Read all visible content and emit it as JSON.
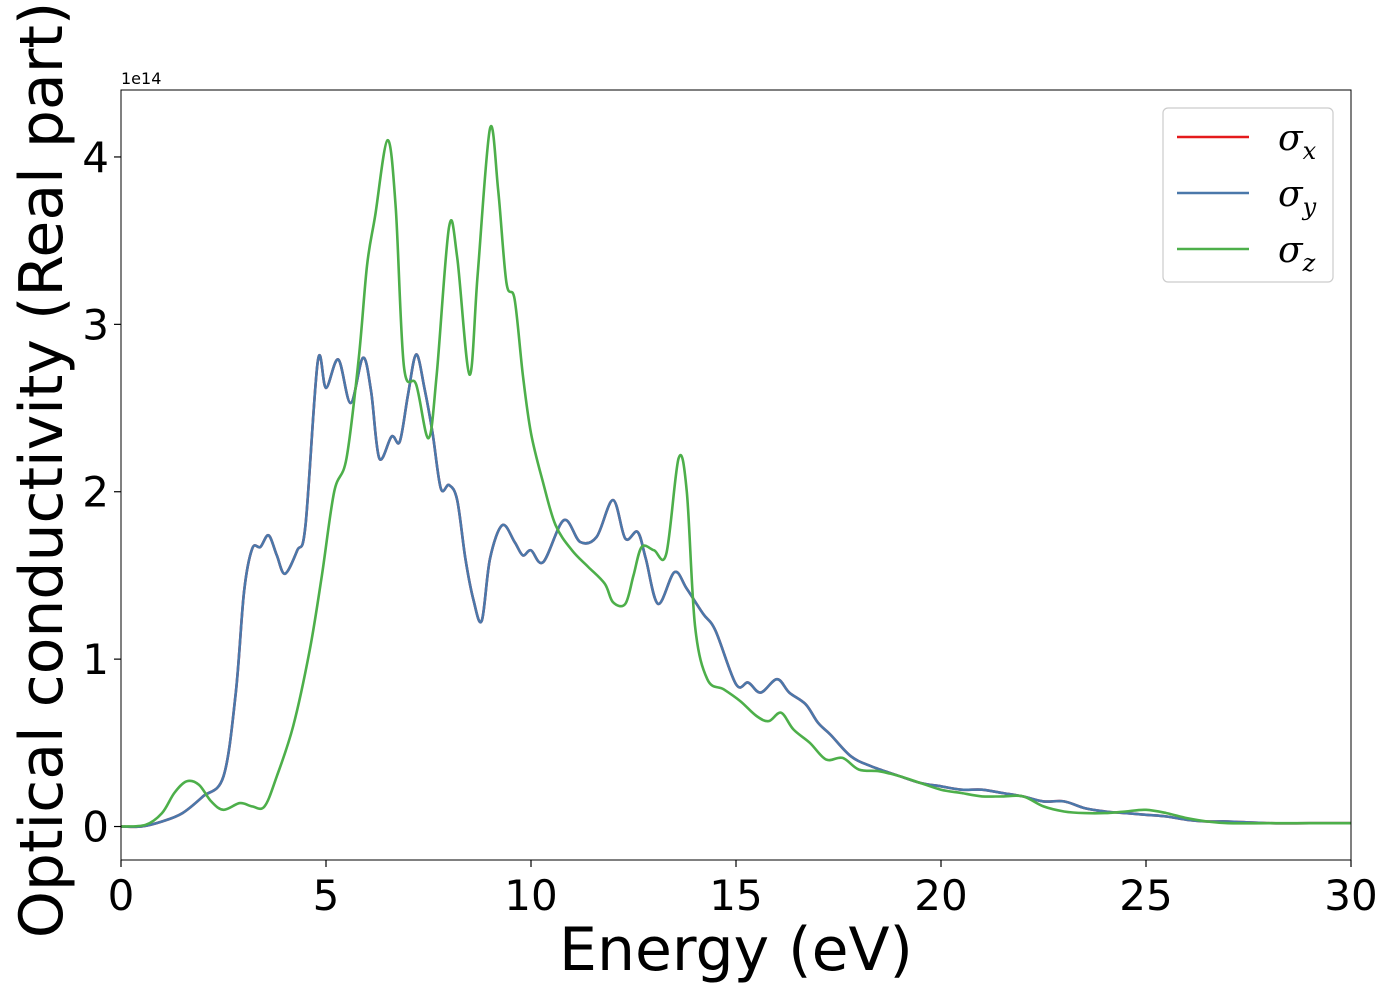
{
  "chart_data": {
    "type": "line",
    "title": "",
    "xlabel": "Energy (eV)",
    "ylabel": "Optical conductivity (Real part)",
    "y_offset_label": "1e14",
    "xlim": [
      0,
      30
    ],
    "ylim": [
      -0.2,
      4.4
    ],
    "xticks": [
      0,
      5,
      10,
      15,
      20,
      25,
      30
    ],
    "xtick_labels": [
      "0",
      "5",
      "10",
      "15",
      "20",
      "25",
      "30"
    ],
    "yticks": [
      0,
      1,
      2,
      3,
      4
    ],
    "ytick_labels": [
      "0",
      "1",
      "2",
      "3",
      "4"
    ],
    "grid": false,
    "legend_position": "top-right",
    "series": [
      {
        "name": "σx",
        "legend_base": "σ",
        "legend_sub": "x",
        "color": "#e41a1c",
        "points": [
          [
            0,
            0
          ],
          [
            0.5,
            0.0
          ],
          [
            1.0,
            0.03
          ],
          [
            1.5,
            0.08
          ],
          [
            2.0,
            0.18
          ],
          [
            2.5,
            0.3
          ],
          [
            2.8,
            0.8
          ],
          [
            3.0,
            1.4
          ],
          [
            3.2,
            1.66
          ],
          [
            3.4,
            1.67
          ],
          [
            3.6,
            1.74
          ],
          [
            3.8,
            1.62
          ],
          [
            4.0,
            1.51
          ],
          [
            4.3,
            1.65
          ],
          [
            4.5,
            1.8
          ],
          [
            4.8,
            2.78
          ],
          [
            5.0,
            2.62
          ],
          [
            5.3,
            2.79
          ],
          [
            5.6,
            2.53
          ],
          [
            5.9,
            2.8
          ],
          [
            6.1,
            2.6
          ],
          [
            6.3,
            2.2
          ],
          [
            6.6,
            2.33
          ],
          [
            6.8,
            2.3
          ],
          [
            7.0,
            2.58
          ],
          [
            7.2,
            2.82
          ],
          [
            7.4,
            2.62
          ],
          [
            7.6,
            2.35
          ],
          [
            7.8,
            2.02
          ],
          [
            8.0,
            2.04
          ],
          [
            8.2,
            1.95
          ],
          [
            8.4,
            1.6
          ],
          [
            8.6,
            1.35
          ],
          [
            8.8,
            1.23
          ],
          [
            9.0,
            1.6
          ],
          [
            9.3,
            1.8
          ],
          [
            9.6,
            1.7
          ],
          [
            9.8,
            1.62
          ],
          [
            10.0,
            1.65
          ],
          [
            10.3,
            1.58
          ],
          [
            10.8,
            1.83
          ],
          [
            11.2,
            1.7
          ],
          [
            11.6,
            1.73
          ],
          [
            12.0,
            1.95
          ],
          [
            12.3,
            1.72
          ],
          [
            12.6,
            1.76
          ],
          [
            12.8,
            1.6
          ],
          [
            13.1,
            1.33
          ],
          [
            13.5,
            1.52
          ],
          [
            13.8,
            1.42
          ],
          [
            14.2,
            1.27
          ],
          [
            14.5,
            1.17
          ],
          [
            15.0,
            0.85
          ],
          [
            15.3,
            0.86
          ],
          [
            15.6,
            0.8
          ],
          [
            16.0,
            0.88
          ],
          [
            16.3,
            0.8
          ],
          [
            16.7,
            0.73
          ],
          [
            17.0,
            0.62
          ],
          [
            17.3,
            0.55
          ],
          [
            17.8,
            0.42
          ],
          [
            18.3,
            0.36
          ],
          [
            19.0,
            0.3
          ],
          [
            19.5,
            0.26
          ],
          [
            20.0,
            0.24
          ],
          [
            20.5,
            0.22
          ],
          [
            21.0,
            0.22
          ],
          [
            21.5,
            0.2
          ],
          [
            22.0,
            0.18
          ],
          [
            22.5,
            0.15
          ],
          [
            23.0,
            0.15
          ],
          [
            23.5,
            0.11
          ],
          [
            24.0,
            0.09
          ],
          [
            24.5,
            0.08
          ],
          [
            25.0,
            0.07
          ],
          [
            25.5,
            0.06
          ],
          [
            26.0,
            0.04
          ],
          [
            26.5,
            0.03
          ],
          [
            27.0,
            0.03
          ],
          [
            28.0,
            0.02
          ],
          [
            29.0,
            0.02
          ],
          [
            30.0,
            0.02
          ]
        ]
      },
      {
        "name": "σy",
        "legend_base": "σ",
        "legend_sub": "y",
        "color": "#4a78aa",
        "points": [
          [
            0,
            0
          ],
          [
            0.5,
            0.0
          ],
          [
            1.0,
            0.03
          ],
          [
            1.5,
            0.08
          ],
          [
            2.0,
            0.18
          ],
          [
            2.5,
            0.3
          ],
          [
            2.8,
            0.8
          ],
          [
            3.0,
            1.4
          ],
          [
            3.2,
            1.66
          ],
          [
            3.4,
            1.67
          ],
          [
            3.6,
            1.74
          ],
          [
            3.8,
            1.62
          ],
          [
            4.0,
            1.51
          ],
          [
            4.3,
            1.65
          ],
          [
            4.5,
            1.8
          ],
          [
            4.8,
            2.78
          ],
          [
            5.0,
            2.62
          ],
          [
            5.3,
            2.79
          ],
          [
            5.6,
            2.53
          ],
          [
            5.9,
            2.8
          ],
          [
            6.1,
            2.6
          ],
          [
            6.3,
            2.2
          ],
          [
            6.6,
            2.33
          ],
          [
            6.8,
            2.3
          ],
          [
            7.0,
            2.58
          ],
          [
            7.2,
            2.82
          ],
          [
            7.4,
            2.62
          ],
          [
            7.6,
            2.35
          ],
          [
            7.8,
            2.02
          ],
          [
            8.0,
            2.04
          ],
          [
            8.2,
            1.95
          ],
          [
            8.4,
            1.6
          ],
          [
            8.6,
            1.35
          ],
          [
            8.8,
            1.23
          ],
          [
            9.0,
            1.6
          ],
          [
            9.3,
            1.8
          ],
          [
            9.6,
            1.7
          ],
          [
            9.8,
            1.62
          ],
          [
            10.0,
            1.65
          ],
          [
            10.3,
            1.58
          ],
          [
            10.8,
            1.83
          ],
          [
            11.2,
            1.7
          ],
          [
            11.6,
            1.73
          ],
          [
            12.0,
            1.95
          ],
          [
            12.3,
            1.72
          ],
          [
            12.6,
            1.76
          ],
          [
            12.8,
            1.6
          ],
          [
            13.1,
            1.33
          ],
          [
            13.5,
            1.52
          ],
          [
            13.8,
            1.42
          ],
          [
            14.2,
            1.27
          ],
          [
            14.5,
            1.17
          ],
          [
            15.0,
            0.85
          ],
          [
            15.3,
            0.86
          ],
          [
            15.6,
            0.8
          ],
          [
            16.0,
            0.88
          ],
          [
            16.3,
            0.8
          ],
          [
            16.7,
            0.73
          ],
          [
            17.0,
            0.62
          ],
          [
            17.3,
            0.55
          ],
          [
            17.8,
            0.42
          ],
          [
            18.3,
            0.36
          ],
          [
            19.0,
            0.3
          ],
          [
            19.5,
            0.26
          ],
          [
            20.0,
            0.24
          ],
          [
            20.5,
            0.22
          ],
          [
            21.0,
            0.22
          ],
          [
            21.5,
            0.2
          ],
          [
            22.0,
            0.18
          ],
          [
            22.5,
            0.15
          ],
          [
            23.0,
            0.15
          ],
          [
            23.5,
            0.11
          ],
          [
            24.0,
            0.09
          ],
          [
            24.5,
            0.08
          ],
          [
            25.0,
            0.07
          ],
          [
            25.5,
            0.06
          ],
          [
            26.0,
            0.04
          ],
          [
            26.5,
            0.03
          ],
          [
            27.0,
            0.03
          ],
          [
            28.0,
            0.02
          ],
          [
            29.0,
            0.02
          ],
          [
            30.0,
            0.02
          ]
        ]
      },
      {
        "name": "σz",
        "legend_base": "σ",
        "legend_sub": "z",
        "color": "#4daf4a",
        "points": [
          [
            0,
            0
          ],
          [
            0.6,
            0.01
          ],
          [
            1.0,
            0.08
          ],
          [
            1.3,
            0.2
          ],
          [
            1.6,
            0.27
          ],
          [
            1.9,
            0.25
          ],
          [
            2.2,
            0.15
          ],
          [
            2.5,
            0.1
          ],
          [
            2.9,
            0.14
          ],
          [
            3.2,
            0.12
          ],
          [
            3.5,
            0.12
          ],
          [
            3.8,
            0.3
          ],
          [
            4.2,
            0.6
          ],
          [
            4.6,
            1.05
          ],
          [
            4.9,
            1.5
          ],
          [
            5.2,
            2.0
          ],
          [
            5.5,
            2.2
          ],
          [
            5.8,
            2.8
          ],
          [
            6.0,
            3.35
          ],
          [
            6.2,
            3.65
          ],
          [
            6.5,
            4.1
          ],
          [
            6.7,
            3.7
          ],
          [
            6.9,
            2.75
          ],
          [
            7.2,
            2.64
          ],
          [
            7.5,
            2.32
          ],
          [
            7.7,
            2.7
          ],
          [
            8.0,
            3.58
          ],
          [
            8.2,
            3.4
          ],
          [
            8.5,
            2.7
          ],
          [
            8.7,
            3.3
          ],
          [
            9.0,
            4.17
          ],
          [
            9.2,
            3.8
          ],
          [
            9.4,
            3.25
          ],
          [
            9.6,
            3.15
          ],
          [
            9.8,
            2.7
          ],
          [
            10.0,
            2.35
          ],
          [
            10.3,
            2.05
          ],
          [
            10.6,
            1.8
          ],
          [
            11.0,
            1.65
          ],
          [
            11.4,
            1.55
          ],
          [
            11.8,
            1.45
          ],
          [
            12.0,
            1.34
          ],
          [
            12.3,
            1.33
          ],
          [
            12.5,
            1.5
          ],
          [
            12.7,
            1.67
          ],
          [
            13.0,
            1.65
          ],
          [
            13.3,
            1.63
          ],
          [
            13.6,
            2.2
          ],
          [
            13.8,
            2.0
          ],
          [
            14.0,
            1.2
          ],
          [
            14.3,
            0.88
          ],
          [
            14.7,
            0.82
          ],
          [
            15.1,
            0.75
          ],
          [
            15.5,
            0.66
          ],
          [
            15.8,
            0.63
          ],
          [
            16.1,
            0.68
          ],
          [
            16.4,
            0.58
          ],
          [
            16.8,
            0.5
          ],
          [
            17.2,
            0.4
          ],
          [
            17.6,
            0.41
          ],
          [
            18.0,
            0.34
          ],
          [
            18.5,
            0.33
          ],
          [
            19.0,
            0.3
          ],
          [
            19.5,
            0.26
          ],
          [
            20.0,
            0.22
          ],
          [
            20.5,
            0.2
          ],
          [
            21.0,
            0.18
          ],
          [
            21.5,
            0.18
          ],
          [
            22.0,
            0.18
          ],
          [
            22.5,
            0.12
          ],
          [
            23.0,
            0.09
          ],
          [
            23.5,
            0.08
          ],
          [
            24.0,
            0.08
          ],
          [
            24.5,
            0.09
          ],
          [
            25.0,
            0.1
          ],
          [
            25.5,
            0.08
          ],
          [
            26.0,
            0.05
          ],
          [
            26.5,
            0.03
          ],
          [
            27.0,
            0.02
          ],
          [
            28.0,
            0.02
          ],
          [
            29.0,
            0.02
          ],
          [
            30.0,
            0.02
          ]
        ]
      }
    ]
  }
}
